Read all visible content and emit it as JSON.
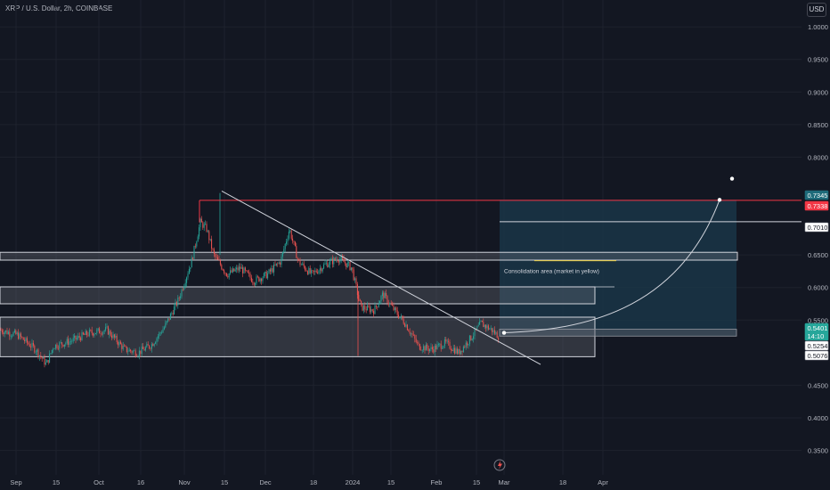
{
  "header": {
    "title": "XRP / U.S. Dollar, 2h, COINBASE",
    "currency_button": "USD"
  },
  "colors": {
    "background": "#131722",
    "up": "#26a69a",
    "down": "#ef5350",
    "resistance": "#f23645",
    "target_box": "#1e3a4f",
    "zone_fill": "#5d606b"
  },
  "chart_data": {
    "type": "candlestick",
    "symbol": "XRP / U.S. Dollar",
    "interval": "2h",
    "exchange": "COINBASE",
    "ylim": [
      0.3125,
      1.0412
    ],
    "y_ticks": [
      "1.0000",
      "0.9500",
      "0.9000",
      "0.8500",
      "0.8000",
      "0.6500",
      "0.6000",
      "0.5500",
      "0.4500",
      "0.4000",
      "0.3500"
    ],
    "x_ticks": [
      "Sep",
      "15",
      "Oct",
      "16",
      "Nov",
      "15",
      "Dec",
      "18",
      "2024",
      "15",
      "Feb",
      "15",
      "Mar",
      "18",
      "Apr"
    ],
    "price_tags": [
      {
        "label": "0.7345",
        "value": 0.7345,
        "color": "#1e6b7a"
      },
      {
        "label": "0.7338",
        "value": 0.7338,
        "color": "#f23645"
      },
      {
        "label": "0.7010",
        "value": 0.701,
        "color": "#ffffff"
      },
      {
        "label": "0.5401",
        "value": 0.5401,
        "color": "#26a69a"
      },
      {
        "label": "14:10",
        "value": 0.5305,
        "color": "#26a69a"
      },
      {
        "label": "0.5254",
        "value": 0.5254,
        "color": "#ffffff"
      },
      {
        "label": "0.5076",
        "value": 0.5076,
        "color": "#ffffff"
      }
    ],
    "annotation": "Consolidation area (market in yellow)",
    "levels": {
      "resistance": 0.7338,
      "white_line": 0.701,
      "target": 0.7345
    },
    "zones": [
      {
        "top": 0.654,
        "bottom": 0.642
      },
      {
        "top": 0.601,
        "bottom": 0.575
      },
      {
        "top": 0.5545,
        "bottom": 0.4938
      }
    ],
    "target_box": {
      "top": 0.7345,
      "bottom": 0.5254
    }
  }
}
